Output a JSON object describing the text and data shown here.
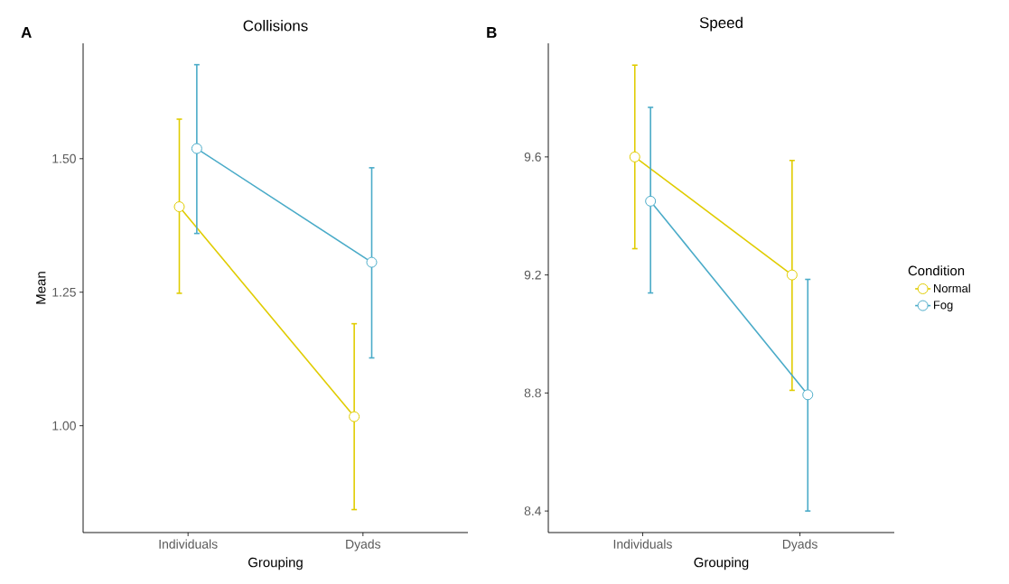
{
  "chart_data": [
    {
      "type": "line",
      "title": "Collisions",
      "xlabel": "Grouping",
      "ylabel": "Mean",
      "annotations": [
        "A"
      ],
      "categories": [
        "Individuals",
        "Dyads"
      ],
      "marker": "circle",
      "line_style": "solid",
      "ylim": [
        0.8,
        1.716
      ],
      "yticks": [
        {
          "value": 1.0,
          "label": "1.00"
        },
        {
          "value": 1.25,
          "label": "1.25"
        },
        {
          "value": 1.5,
          "label": "1.50"
        }
      ],
      "series": [
        {
          "color": "#e0cc00",
          "values": [
            1.41,
            1.017
          ],
          "errors": [
            [
              1.248,
              1.574
            ],
            [
              0.843,
              1.191
            ]
          ]
        },
        {
          "color": "#4aabc8",
          "values": [
            1.519,
            1.306
          ],
          "errors": [
            [
              1.36,
              1.676
            ],
            [
              1.127,
              1.483
            ]
          ]
        }
      ]
    },
    {
      "type": "line",
      "title": "Speed",
      "xlabel": "Grouping",
      "annotations": [
        "B"
      ],
      "categories": [
        "Individuals",
        "Dyads"
      ],
      "marker": "circle",
      "line_style": "solid",
      "legend": "right",
      "legend_title": "Condition",
      "ylim": [
        8.327,
        9.985
      ],
      "yticks": [
        8.4,
        8.8,
        9.2,
        9.6
      ],
      "series": [
        {
          "name": "Normal",
          "color": "#e0cc00",
          "values": [
            9.6,
            9.2
          ],
          "errors": [
            [
              9.289,
              9.911
            ],
            [
              8.809,
              9.588
            ]
          ]
        },
        {
          "name": "Fog",
          "color": "#4aabc8",
          "values": [
            9.45,
            8.794
          ],
          "errors": [
            [
              9.139,
              9.768
            ],
            [
              8.4,
              9.185
            ]
          ]
        }
      ]
    }
  ]
}
